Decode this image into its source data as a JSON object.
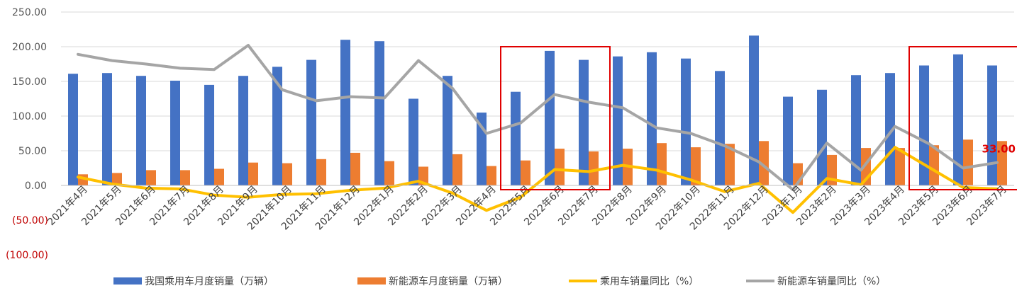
{
  "chart_data": {
    "type": "bar",
    "categories": [
      "2021年4月",
      "2021年5月",
      "2021年6月",
      "2021年7月",
      "2021年8月",
      "2021年9月",
      "2021年10月",
      "2021年11月",
      "2021年12月",
      "2022年1月",
      "2022年2月",
      "2022年3月",
      "2022年4月",
      "2022年5月",
      "2022年6月",
      "2022年7月",
      "2022年8月",
      "2022年9月",
      "2022年10月",
      "2022年11月",
      "2022年12月",
      "2023年1月",
      "2023年2月",
      "2023年3月",
      "2023年4月",
      "2023年5月",
      "2023年6月",
      "2023年7月"
    ],
    "series": [
      {
        "name": "我国乘用车月度销量（万辆）",
        "type": "bar",
        "color": "#4472c4",
        "values": [
          161,
          162,
          158,
          151,
          145,
          158,
          171,
          181,
          210,
          208,
          125,
          158,
          105,
          135,
          194,
          181,
          186,
          192,
          183,
          165,
          216,
          128,
          138,
          159,
          162,
          173,
          189,
          173
        ]
      },
      {
        "name": "新能源车月度销量（万辆）",
        "type": "bar",
        "color": "#ed7d31",
        "values": [
          16,
          18,
          22,
          22,
          24,
          33,
          32,
          38,
          47,
          35,
          27,
          45,
          28,
          36,
          53,
          49,
          53,
          61,
          55,
          60,
          64,
          32,
          44,
          54,
          54,
          58,
          66,
          64
        ]
      },
      {
        "name": "乘用车销量同比（%）",
        "type": "line",
        "color": "#ffc000",
        "values": [
          12,
          2,
          -4,
          -5,
          -14,
          -17,
          -13,
          -12,
          -7,
          -4,
          6,
          -11,
          -36,
          -17,
          23,
          20,
          29,
          22,
          8,
          -9,
          3,
          -39,
          10,
          1,
          55,
          26,
          -3,
          -5
        ]
      },
      {
        "name": "新能源车销量同比（%）",
        "type": "line",
        "color": "#a5a5a5",
        "values": [
          189,
          180,
          175,
          169,
          167,
          202,
          138,
          122,
          128,
          126,
          180,
          140,
          75,
          90,
          131,
          120,
          112,
          83,
          75,
          57,
          34,
          -6,
          61,
          22,
          85,
          60,
          25,
          33
        ]
      }
    ],
    "yticks": [
      "250.00",
      "200.00",
      "150.00",
      "100.00",
      "50.00",
      "0.00",
      "(50.00)",
      "(100.00)"
    ],
    "ylim": [
      -100,
      250
    ],
    "annotation": {
      "text": "33.00",
      "series": "新能源车销量同比（%）",
      "index": 27
    },
    "highlight_ranges": [
      [
        13,
        15
      ],
      [
        25,
        27
      ]
    ],
    "grid": true,
    "legend_position": "bottom",
    "title": "",
    "xlabel": "",
    "ylabel": ""
  }
}
